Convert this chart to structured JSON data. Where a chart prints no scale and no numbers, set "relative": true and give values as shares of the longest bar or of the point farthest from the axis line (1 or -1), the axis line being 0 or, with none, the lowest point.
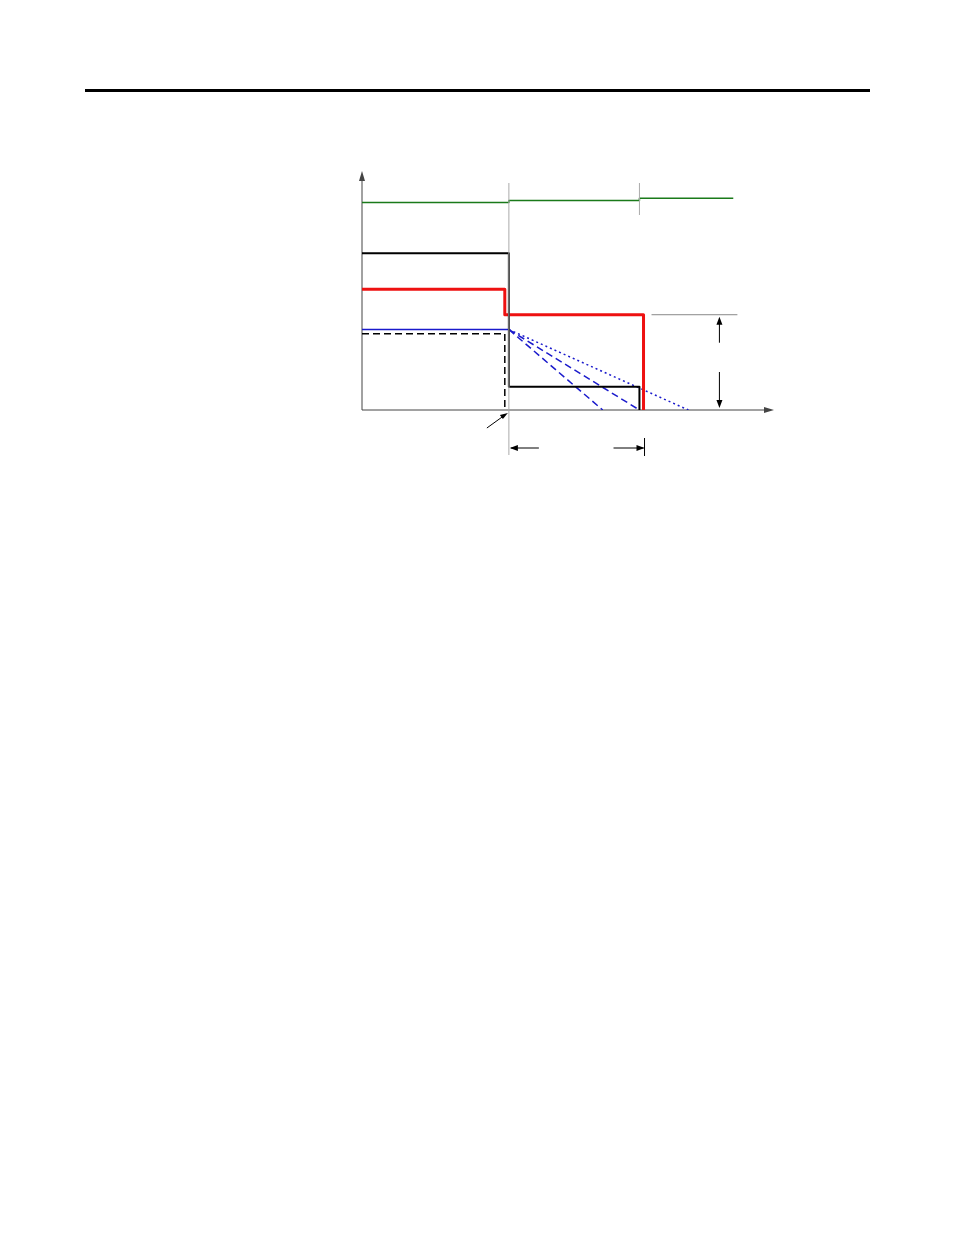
{
  "chart_data": {
    "type": "line",
    "relative": true,
    "marker": "none",
    "categories": [
      null,
      null,
      null,
      null,
      null,
      null,
      null,
      null,
      null,
      null,
      null,
      null,
      null,
      null,
      null,
      null,
      null,
      null,
      null,
      null,
      null,
      null,
      null,
      null,
      null,
      null,
      null,
      null,
      null,
      null,
      null,
      null,
      null,
      null,
      null,
      null,
      null,
      null,
      null,
      null,
      null,
      null,
      null,
      null,
      null,
      null,
      null,
      null,
      null,
      null,
      null,
      null,
      null,
      null,
      null,
      null,
      null,
      null,
      null,
      null,
      null,
      null,
      null,
      null,
      null,
      null,
      null,
      null,
      null,
      null,
      null,
      null,
      null,
      null,
      null,
      null,
      null,
      null,
      null,
      null,
      null,
      null,
      null,
      null,
      null,
      null,
      null,
      null,
      null,
      null,
      null,
      null,
      null,
      null,
      null,
      null,
      null,
      null,
      null,
      null,
      null
    ],
    "series": [
      {
        "type": "step",
        "color": "#1a7a1a",
        "values": [
          0.98,
          null,
          null,
          null,
          null,
          null,
          null,
          null,
          null,
          null,
          null,
          null,
          null,
          null,
          null,
          null,
          null,
          null,
          null,
          null,
          null,
          null,
          null,
          null,
          null,
          null,
          null,
          null,
          null,
          null,
          null,
          null,
          null,
          null,
          null,
          null,
          0.99,
          null,
          null,
          null,
          null,
          null,
          null,
          null,
          null,
          null,
          null,
          null,
          null,
          null,
          null,
          null,
          null,
          null,
          null,
          null,
          null,
          null,
          null,
          null,
          null,
          null,
          null,
          null,
          null,
          null,
          null,
          null,
          1,
          null,
          null,
          null,
          null,
          null,
          null,
          null,
          null,
          null,
          null,
          null,
          null,
          null,
          null,
          null,
          null,
          null,
          null,
          null,
          null,
          null,
          null,
          1,
          null,
          null,
          null,
          null,
          null,
          null,
          null,
          null,
          null
        ]
      },
      {
        "type": "step",
        "color": "#000000",
        "values": [
          0.74,
          null,
          null,
          null,
          null,
          null,
          null,
          null,
          null,
          null,
          null,
          null,
          null,
          null,
          null,
          null,
          null,
          null,
          null,
          null,
          null,
          null,
          null,
          null,
          null,
          null,
          null,
          null,
          null,
          null,
          null,
          null,
          null,
          null,
          null,
          null,
          0.11,
          null,
          null,
          null,
          null,
          null,
          null,
          null,
          null,
          null,
          null,
          null,
          null,
          null,
          null,
          null,
          null,
          null,
          null,
          null,
          null,
          null,
          null,
          null,
          null,
          null,
          null,
          null,
          null,
          null,
          null,
          null,
          0,
          null,
          null,
          null,
          null,
          null,
          null,
          null,
          null,
          null,
          null,
          null,
          null,
          null,
          null,
          null,
          null,
          null,
          null,
          null,
          null,
          null,
          null,
          null,
          null,
          null,
          null,
          null,
          null,
          null,
          null,
          null,
          null
        ]
      },
      {
        "type": "step",
        "color": "#ee1111",
        "values": [
          0.57,
          null,
          null,
          null,
          null,
          null,
          null,
          null,
          null,
          null,
          null,
          null,
          null,
          null,
          null,
          null,
          null,
          null,
          null,
          null,
          null,
          null,
          null,
          null,
          null,
          null,
          null,
          null,
          null,
          null,
          null,
          null,
          null,
          null,
          null,
          0.45,
          null,
          null,
          null,
          null,
          null,
          null,
          null,
          null,
          null,
          null,
          null,
          null,
          null,
          null,
          null,
          null,
          null,
          null,
          null,
          null,
          null,
          null,
          null,
          null,
          null,
          null,
          null,
          null,
          null,
          null,
          null,
          null,
          null,
          0,
          null,
          null,
          null,
          null,
          null,
          null,
          null,
          null,
          null,
          null,
          null,
          null,
          null,
          null,
          null,
          null,
          null,
          null,
          null,
          null,
          null,
          null,
          null,
          null,
          null,
          null,
          null,
          null,
          null,
          null,
          null
        ]
      },
      {
        "color": "#1a1acc",
        "values": [
          0.38,
          null,
          null,
          null,
          null,
          null,
          null,
          null,
          null,
          null,
          null,
          null,
          null,
          null,
          null,
          null,
          null,
          null,
          null,
          null,
          null,
          null,
          null,
          null,
          null,
          null,
          null,
          null,
          null,
          null,
          null,
          null,
          null,
          null,
          null,
          null,
          0.38,
          null,
          null,
          null,
          null,
          null,
          null,
          null,
          null,
          null,
          null,
          null,
          null,
          null,
          null,
          null,
          null,
          null,
          null,
          null,
          null,
          null,
          null,
          null,
          null,
          null,
          null,
          null,
          null,
          null,
          null,
          null,
          null,
          null,
          null,
          null,
          null,
          null,
          null,
          null,
          null,
          null,
          null,
          null,
          null,
          null,
          null,
          null,
          null,
          null,
          null,
          null,
          null,
          null,
          null,
          null,
          null,
          null,
          null,
          null,
          null,
          null,
          null,
          null,
          null
        ]
      },
      {
        "color": "#1a1acc",
        "line_style": "dashed",
        "values": [
          null,
          null,
          null,
          null,
          null,
          null,
          null,
          null,
          null,
          null,
          null,
          null,
          null,
          null,
          null,
          null,
          null,
          null,
          null,
          null,
          null,
          null,
          null,
          null,
          null,
          null,
          null,
          null,
          null,
          null,
          null,
          null,
          null,
          null,
          null,
          null,
          0.38,
          null,
          null,
          null,
          null,
          null,
          null,
          null,
          null,
          null,
          null,
          null,
          null,
          null,
          null,
          null,
          null,
          null,
          null,
          null,
          null,
          null,
          null,
          0,
          null,
          null,
          null,
          null,
          null,
          null,
          null,
          null,
          null,
          null,
          null,
          null,
          null,
          null,
          null,
          null,
          null,
          null,
          null,
          null,
          null,
          null,
          null,
          null,
          null,
          null,
          null,
          null,
          null,
          null,
          null,
          null,
          null,
          null,
          null,
          null,
          null,
          null,
          null,
          null,
          null
        ]
      },
      {
        "color": "#1a1acc",
        "line_style": "dashed",
        "values": [
          null,
          null,
          null,
          null,
          null,
          null,
          null,
          null,
          null,
          null,
          null,
          null,
          null,
          null,
          null,
          null,
          null,
          null,
          null,
          null,
          null,
          null,
          null,
          null,
          null,
          null,
          null,
          null,
          null,
          null,
          null,
          null,
          null,
          null,
          null,
          null,
          0.38,
          null,
          null,
          null,
          null,
          null,
          null,
          null,
          null,
          null,
          null,
          null,
          null,
          null,
          null,
          null,
          null,
          null,
          null,
          null,
          null,
          null,
          null,
          null,
          null,
          null,
          null,
          null,
          null,
          null,
          null,
          null,
          0,
          null,
          null,
          null,
          null,
          null,
          null,
          null,
          null,
          null,
          null,
          null,
          null,
          null,
          null,
          null,
          null,
          null,
          null,
          null,
          null,
          null,
          null,
          null,
          null,
          null,
          null,
          null,
          null,
          null,
          null,
          null,
          null
        ]
      },
      {
        "color": "#1a1acc",
        "line_style": "dotted",
        "values": [
          null,
          null,
          null,
          null,
          null,
          null,
          null,
          null,
          null,
          null,
          null,
          null,
          null,
          null,
          null,
          null,
          null,
          null,
          null,
          null,
          null,
          null,
          null,
          null,
          null,
          null,
          null,
          null,
          null,
          null,
          null,
          null,
          null,
          null,
          null,
          null,
          0.38,
          null,
          null,
          null,
          null,
          null,
          null,
          null,
          null,
          null,
          null,
          null,
          null,
          null,
          null,
          null,
          null,
          null,
          null,
          null,
          null,
          null,
          null,
          null,
          null,
          null,
          null,
          null,
          null,
          null,
          null,
          null,
          null,
          null,
          null,
          null,
          null,
          null,
          null,
          null,
          null,
          null,
          null,
          null,
          0,
          null,
          null,
          null,
          null,
          null,
          null,
          null,
          null,
          null,
          null,
          null,
          null,
          null,
          null,
          null,
          null,
          null,
          null,
          null,
          null
        ]
      },
      {
        "type": "step",
        "color": "#000000",
        "line_style": "dashed",
        "values": [
          0.36,
          null,
          null,
          null,
          null,
          null,
          null,
          null,
          null,
          null,
          null,
          null,
          null,
          null,
          null,
          null,
          null,
          null,
          null,
          null,
          null,
          null,
          null,
          null,
          null,
          null,
          null,
          null,
          null,
          null,
          null,
          null,
          null,
          null,
          null,
          0,
          null,
          null,
          null,
          null,
          null,
          null,
          null,
          null,
          null,
          null,
          null,
          null,
          null,
          null,
          null,
          null,
          null,
          null,
          null,
          null,
          null,
          null,
          null,
          null,
          null,
          null,
          null,
          null,
          null,
          null,
          null,
          null,
          null,
          null,
          null,
          null,
          null,
          null,
          null,
          null,
          null,
          null,
          null,
          null,
          null,
          null,
          null,
          null,
          null,
          null,
          null,
          null,
          null,
          null,
          null,
          null,
          null,
          null,
          null,
          null,
          null,
          null,
          null,
          null,
          null
        ]
      }
    ]
  }
}
